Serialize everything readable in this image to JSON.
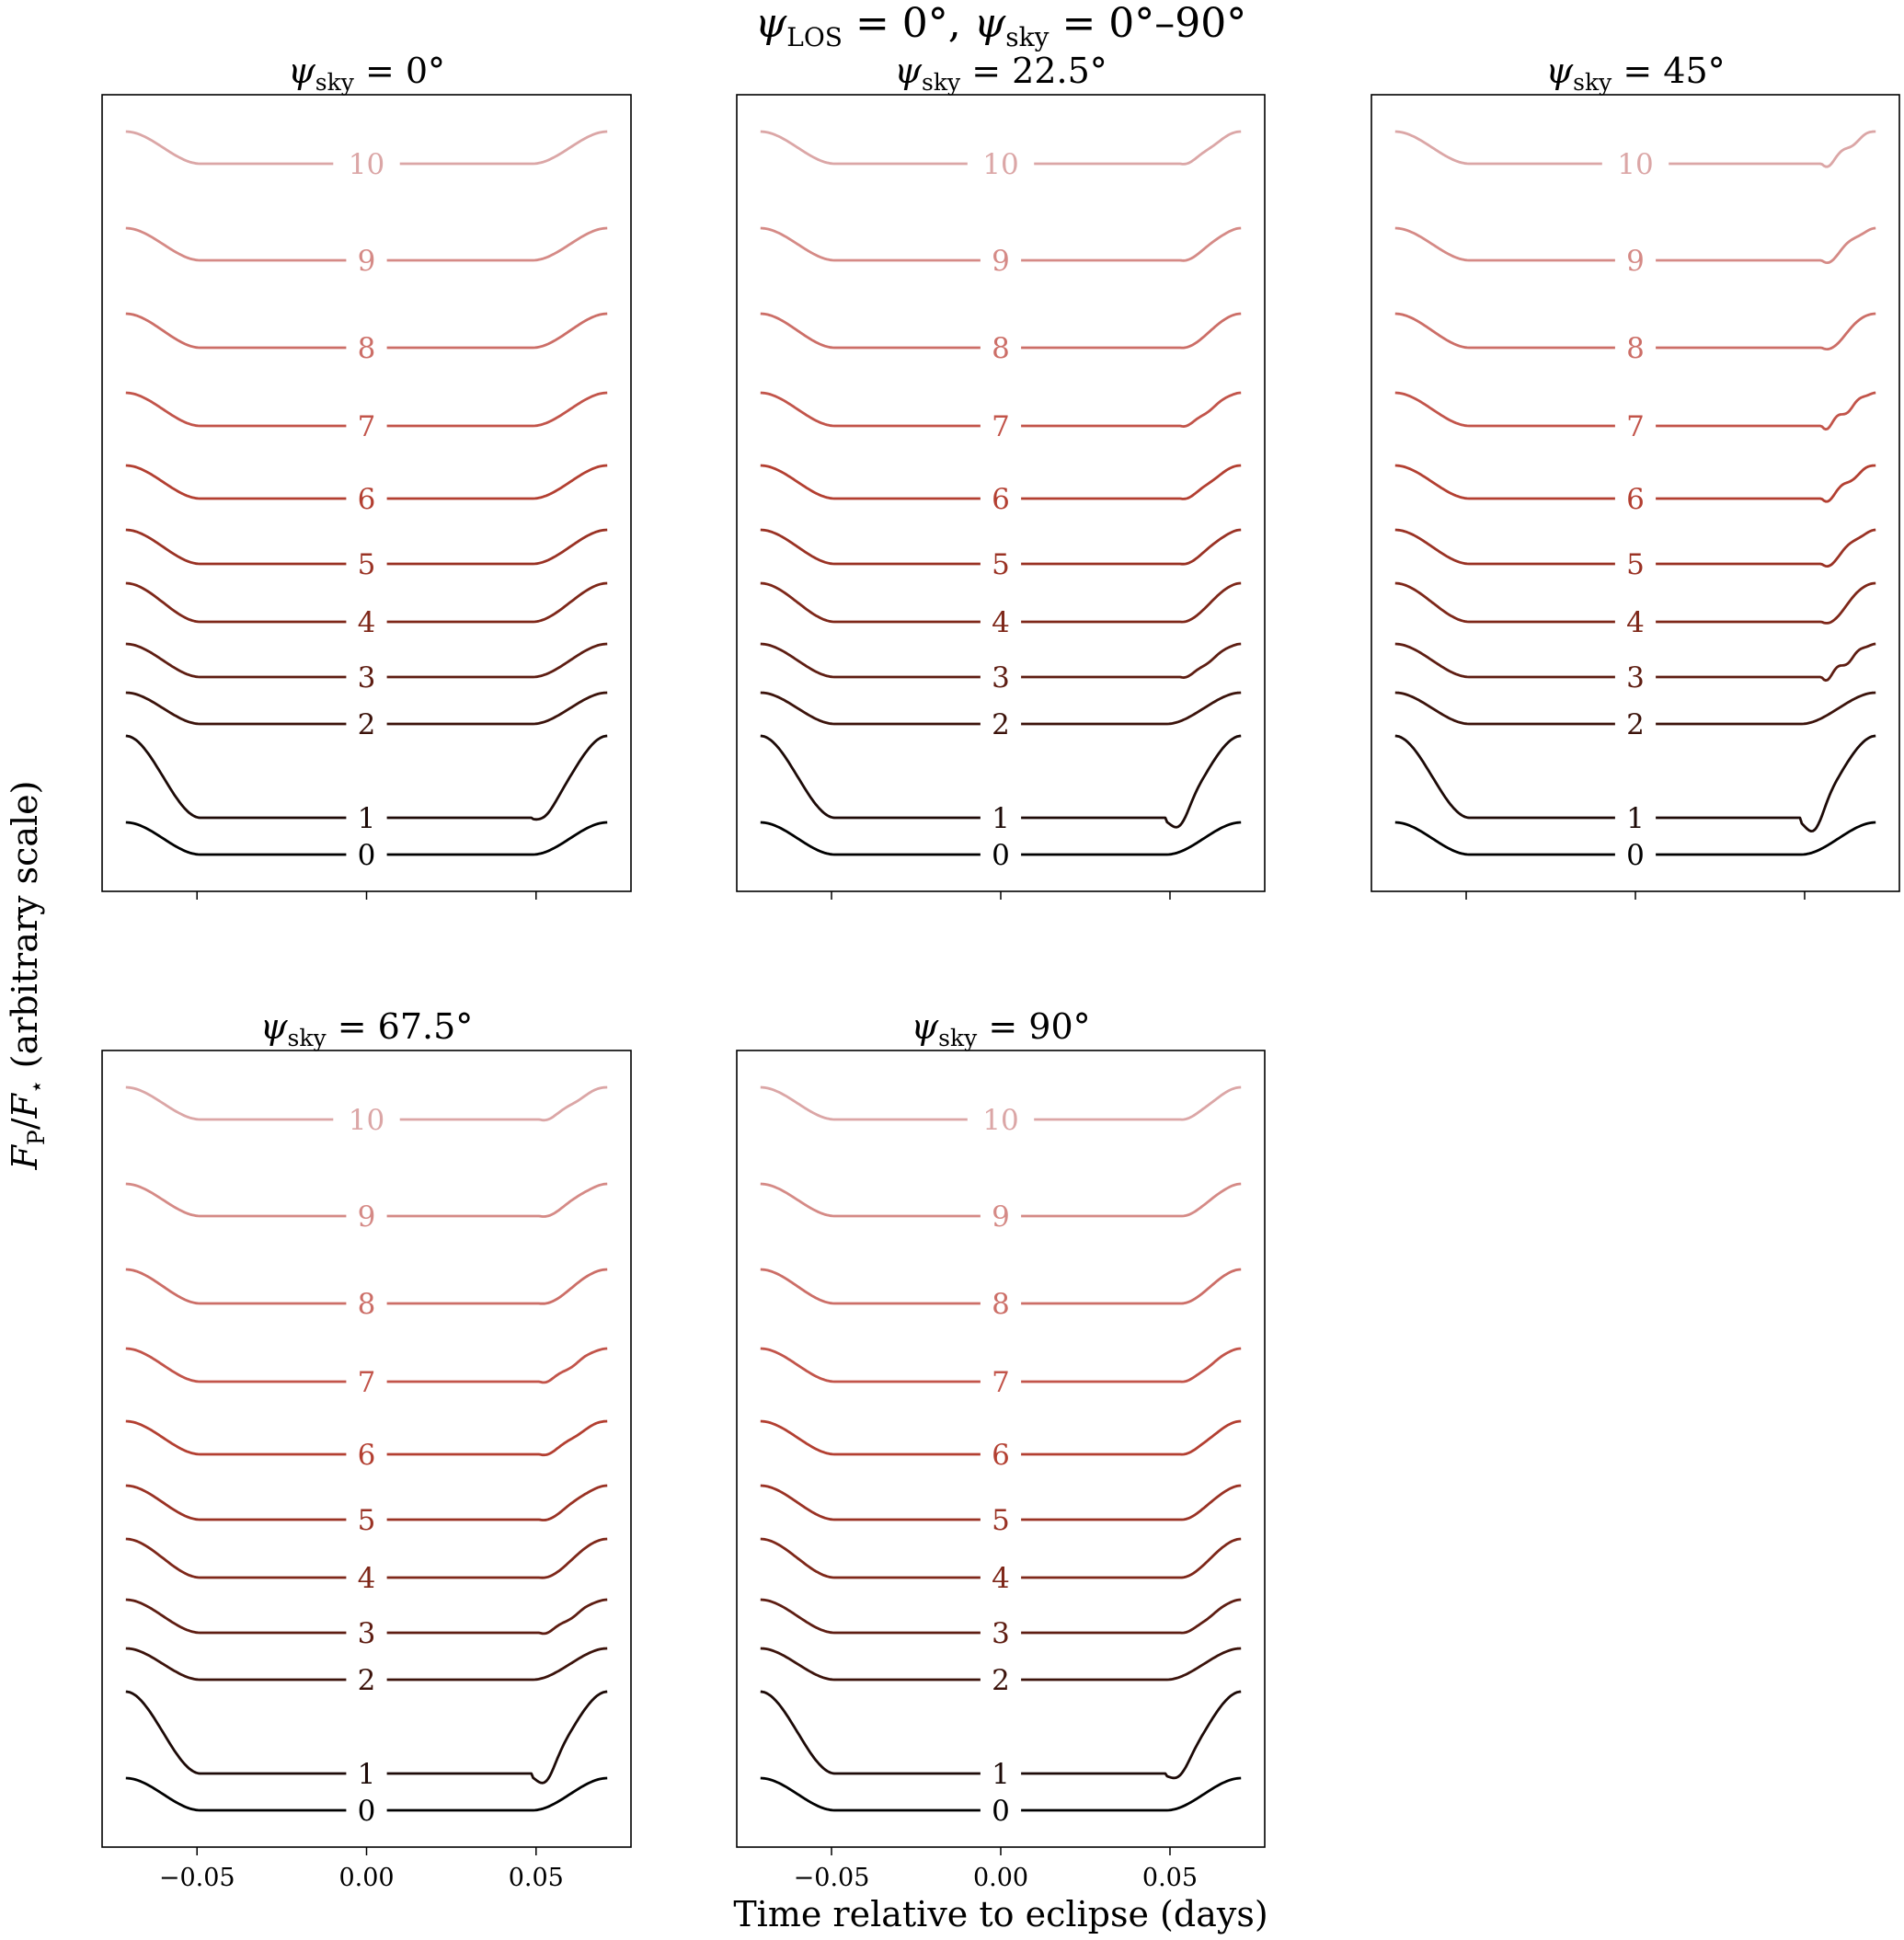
{
  "figure": {
    "suptitle": {
      "psi": "ψ",
      "los_sub": "LOS",
      "mid": " = 0°, ",
      "psi2": "ψ",
      "sky_sub": "sky",
      "tail": " = 0°–90°"
    },
    "xlabel": "Time relative to eclipse (days)",
    "ylabel": {
      "f": "F",
      "p_sub": "P",
      "slash": "/",
      "f2": "F",
      "star_sub": "⋆",
      "tail": " (arbitrary scale)"
    }
  },
  "chart_data": [
    {
      "type": "line",
      "title": {
        "psi": "ψ",
        "sub": "sky",
        "rest": " = 0°"
      },
      "psi_sky_deg": 0,
      "bump_amp": 0,
      "dip": 0.3,
      "late_shift": 0,
      "xticks": [
        "−0.05",
        "0.00",
        "0.05"
      ],
      "show_xticklabels": false
    },
    {
      "type": "line",
      "title": {
        "psi": "ψ",
        "sub": "sky",
        "rest": " = 22.5°"
      },
      "psi_sky_deg": 22.5,
      "bump_amp": 0.25,
      "dip": 1.0,
      "late_shift": 0.004,
      "xticks": [
        "−0.05",
        "0.00",
        "0.05"
      ],
      "show_xticklabels": false
    },
    {
      "type": "line",
      "title": {
        "psi": "ψ",
        "sub": "sky",
        "rest": " = 45°"
      },
      "psi_sky_deg": 45,
      "bump_amp": 1.0,
      "dip": 1.3,
      "late_shift": 0.006,
      "xticks": [
        "−0.05",
        "0.00",
        "0.05"
      ],
      "show_xticklabels": false
    },
    {
      "type": "line",
      "title": {
        "psi": "ψ",
        "sub": "sky",
        "rest": " = 67.5°"
      },
      "psi_sky_deg": 67.5,
      "bump_amp": 0.35,
      "dip": 1.0,
      "late_shift": 0.002,
      "xticks": [
        "−0.05",
        "0.00",
        "0.05"
      ],
      "show_xticklabels": true
    },
    {
      "type": "line",
      "title": {
        "psi": "ψ",
        "sub": "sky",
        "rest": " = 90°"
      },
      "psi_sky_deg": 90,
      "bump_amp": 0.1,
      "dip": 0.6,
      "late_shift": 0.004,
      "xticks": [
        "−0.05",
        "0.00",
        "0.05"
      ],
      "show_xticklabels": true
    }
  ],
  "series_labels": [
    "0",
    "1",
    "2",
    "3",
    "4",
    "5",
    "6",
    "7",
    "8",
    "9",
    "10"
  ],
  "series_colors": [
    "#000000",
    "#1d0a07",
    "#3c130b",
    "#5e1d12",
    "#7e2719",
    "#9a3224",
    "#b33f31",
    "#c2544a",
    "#cc6e67",
    "#d58a86",
    "#dba6a6"
  ],
  "x_range_days": [
    -0.078,
    0.078
  ],
  "x_data_range_days": [
    -0.071,
    0.071
  ],
  "eclipse_days": {
    "ingress_end": -0.049,
    "egress_start": 0.049
  },
  "curve_depths": [
    1.0,
    1.0,
    1.0,
    1.0,
    1.0,
    1.0,
    1.0,
    1.0,
    1.0,
    1.0,
    1.0
  ]
}
